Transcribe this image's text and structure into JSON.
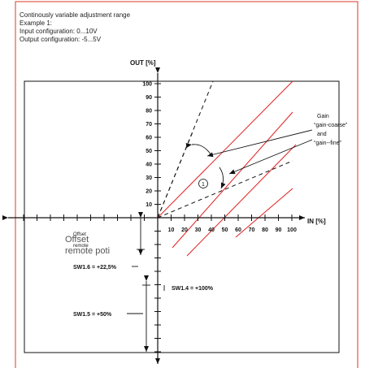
{
  "header": {
    "line1": "Continously variable adjustment range",
    "line2": "Example 1:",
    "line3": "Input configuration:  0...10V",
    "line4": "Output configuration: -5...5V"
  },
  "axes": {
    "y_label": "OUT [%]",
    "x_label": "IN [%]",
    "y_ticks": [
      "100",
      "90",
      "80",
      "70",
      "60",
      "50",
      "40",
      "30",
      "20",
      "10"
    ],
    "x_ticks": [
      "10",
      "20",
      "30",
      "40",
      "50",
      "60",
      "70",
      "80",
      "90",
      "100"
    ]
  },
  "annotations": {
    "gain_line1": "Gain",
    "gain_line2": "“gain-coarse”",
    "gain_line3": "and",
    "gain_line4": "“gain--fine”",
    "circle_marker": "1",
    "offset_small_1": "Offset",
    "offset_small_2": "remote",
    "offset_large_1": "Offset",
    "offset_large_2": "remote poti",
    "sw16": "SW1.6 = +22,5%",
    "sw14": "SW1.4 = +100%",
    "sw15": "SW1.5 = +50%"
  },
  "colors": {
    "frame": "#e05a4a",
    "red_lines": "#e02020",
    "axis": "#111111"
  }
}
